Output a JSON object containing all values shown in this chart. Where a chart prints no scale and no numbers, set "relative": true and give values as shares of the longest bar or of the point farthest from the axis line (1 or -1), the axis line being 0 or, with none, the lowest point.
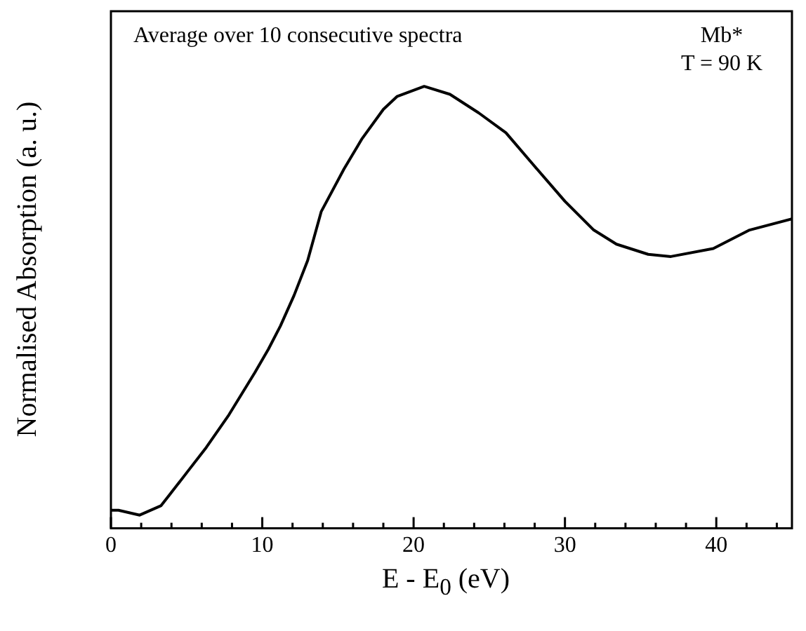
{
  "chart_data": {
    "type": "line",
    "xlabel": "E - E$_{0}$ (eV)",
    "ylabel": "Normalised Absorption (a. u.)",
    "relative": true,
    "xlim": [
      0,
      45
    ],
    "xticks": [
      0,
      {
        "value": 2,
        "label": null
      },
      {
        "value": 4,
        "label": null
      },
      {
        "value": 6,
        "label": null
      },
      {
        "value": 8,
        "label": null
      },
      10,
      {
        "value": 12,
        "label": null
      },
      {
        "value": 14,
        "label": null
      },
      {
        "value": 16,
        "label": null
      },
      {
        "value": 18,
        "label": null
      },
      20,
      {
        "value": 22,
        "label": null
      },
      {
        "value": 24,
        "label": null
      },
      {
        "value": 26,
        "label": null
      },
      {
        "value": 28,
        "label": null
      },
      30,
      {
        "value": 32,
        "label": null
      },
      {
        "value": 34,
        "label": null
      },
      {
        "value": 36,
        "label": null
      },
      {
        "value": 38,
        "label": null
      },
      40,
      {
        "value": 42,
        "label": null
      },
      {
        "value": 44,
        "label": null
      }
    ],
    "tick_labels": "x",
    "grid": false,
    "legend": false,
    "marker": "none",
    "line_style": "solid",
    "annotations": [
      "Average over 10 consecutive spectra",
      "Mb*",
      "T = 90 K"
    ],
    "series": [
      {
        "color": "#000000",
        "x": [
          0,
          0.5,
          1.9,
          3.3,
          3.9,
          5.1,
          6.3,
          7.8,
          9.5,
          10.4,
          11.2,
          12.1,
          13.0,
          13.9,
          15.4,
          16.6,
          18.0,
          18.9,
          20.7,
          22.4,
          24.3,
          26.1,
          27.9,
          30.0,
          31.9,
          33.4,
          35.5,
          37.0,
          39.8,
          42.2,
          45.0
        ],
        "values": [
          0.041,
          0.041,
          0.03,
          0.051,
          0.077,
          0.13,
          0.183,
          0.257,
          0.352,
          0.405,
          0.458,
          0.527,
          0.606,
          0.717,
          0.813,
          0.882,
          0.948,
          0.977,
          1.0,
          0.982,
          0.94,
          0.895,
          0.823,
          0.74,
          0.675,
          0.643,
          0.62,
          0.615,
          0.633,
          0.675,
          0.7
        ]
      }
    ]
  }
}
